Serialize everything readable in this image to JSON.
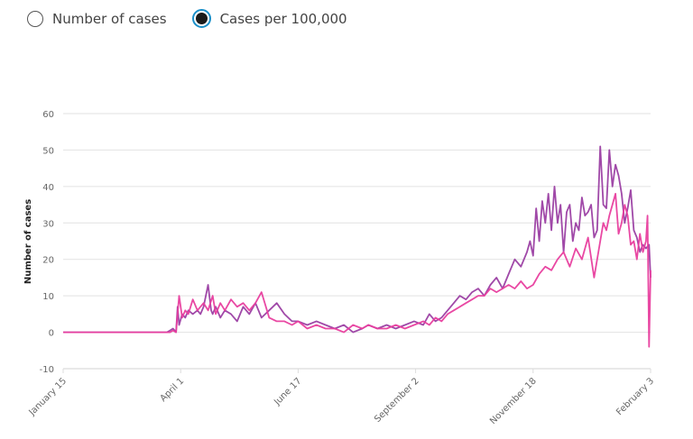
{
  "controls": {
    "options": [
      {
        "label": "Number of cases",
        "selected": false
      },
      {
        "label": "Cases per 100,000",
        "selected": true
      }
    ],
    "accent_color": "#1a8fc9"
  },
  "chart_data": {
    "type": "line",
    "title": "",
    "xlabel": "",
    "ylabel": "Number of cases",
    "ylim": [
      -10,
      60
    ],
    "yticks": [
      -10,
      0,
      10,
      20,
      30,
      40,
      50,
      60
    ],
    "x_day_range": [
      0,
      385
    ],
    "xticks": [
      {
        "day": 0,
        "label": "January 15"
      },
      {
        "day": 77,
        "label": "April 1"
      },
      {
        "day": 154,
        "label": "June 17"
      },
      {
        "day": 231,
        "label": "September 2"
      },
      {
        "day": 308,
        "label": "November 18"
      },
      {
        "day": 385,
        "label": "February 3"
      }
    ],
    "grid": true,
    "series": [
      {
        "name": "series-purple",
        "color": "#9b3fa3",
        "x": [
          0,
          20,
          40,
          60,
          68,
          70,
          72,
          74,
          75,
          76,
          78,
          80,
          82,
          85,
          88,
          90,
          92,
          95,
          97,
          98,
          100,
          103,
          106,
          110,
          114,
          118,
          122,
          126,
          130,
          135,
          140,
          145,
          150,
          154,
          160,
          166,
          172,
          178,
          184,
          190,
          196,
          200,
          206,
          212,
          218,
          224,
          230,
          236,
          240,
          244,
          248,
          252,
          256,
          260,
          264,
          268,
          272,
          276,
          280,
          284,
          288,
          292,
          296,
          300,
          304,
          306,
          308,
          310,
          312,
          314,
          316,
          318,
          320,
          322,
          324,
          326,
          328,
          330,
          332,
          334,
          336,
          338,
          340,
          342,
          344,
          346,
          348,
          350,
          352,
          354,
          356,
          358,
          360,
          362,
          364,
          366,
          368,
          370,
          372,
          374,
          376,
          378,
          380,
          382,
          384,
          385
        ],
        "y": [
          0,
          0,
          0,
          0,
          0,
          0.5,
          1,
          0,
          7,
          2,
          5,
          4,
          6,
          5,
          6,
          5,
          7,
          13,
          6,
          5,
          7,
          4,
          6,
          5,
          3,
          7,
          5,
          8,
          4,
          6,
          8,
          5,
          3,
          3,
          2,
          3,
          2,
          1,
          2,
          0,
          1,
          2,
          1,
          2,
          1,
          2,
          3,
          2,
          5,
          3,
          4,
          6,
          8,
          10,
          9,
          11,
          12,
          10,
          13,
          15,
          12,
          16,
          20,
          18,
          22,
          25,
          21,
          34,
          25,
          36,
          30,
          38,
          28,
          40,
          30,
          35,
          22,
          33,
          35,
          25,
          30,
          28,
          37,
          32,
          33,
          35,
          26,
          28,
          51,
          35,
          34,
          50,
          40,
          46,
          43,
          38,
          30,
          34,
          39,
          28,
          26,
          22,
          24,
          23,
          24,
          15
        ]
      },
      {
        "name": "series-pink",
        "color": "#e83e9e",
        "x": [
          0,
          20,
          40,
          60,
          68,
          70,
          72,
          74,
          76,
          78,
          80,
          82,
          85,
          88,
          90,
          92,
          95,
          98,
          100,
          103,
          106,
          110,
          114,
          118,
          122,
          126,
          130,
          135,
          140,
          145,
          150,
          154,
          160,
          166,
          172,
          178,
          184,
          190,
          196,
          200,
          206,
          212,
          218,
          224,
          230,
          236,
          240,
          244,
          248,
          252,
          256,
          260,
          264,
          268,
          272,
          276,
          280,
          284,
          288,
          292,
          296,
          300,
          304,
          308,
          312,
          316,
          320,
          324,
          328,
          332,
          336,
          340,
          344,
          348,
          352,
          354,
          356,
          358,
          360,
          362,
          364,
          366,
          368,
          370,
          372,
          374,
          376,
          378,
          380,
          382,
          383,
          384,
          385
        ],
        "y": [
          0,
          0,
          0,
          0,
          0,
          0,
          0.5,
          0,
          10,
          4,
          6,
          5,
          9,
          6,
          7,
          8,
          6,
          10,
          5,
          8,
          6,
          9,
          7,
          8,
          6,
          8,
          11,
          4,
          3,
          3,
          2,
          3,
          1,
          2,
          1,
          1,
          0,
          2,
          1,
          2,
          1,
          1,
          2,
          1,
          2,
          3,
          2,
          4,
          3,
          5,
          6,
          7,
          8,
          9,
          10,
          10,
          12,
          11,
          12,
          13,
          12,
          14,
          12,
          13,
          16,
          18,
          17,
          20,
          22,
          18,
          23,
          20,
          26,
          15,
          25,
          30,
          28,
          32,
          35,
          38,
          27,
          30,
          35,
          32,
          24,
          25,
          20,
          27,
          22,
          25,
          32,
          -4,
          17
        ]
      }
    ]
  }
}
